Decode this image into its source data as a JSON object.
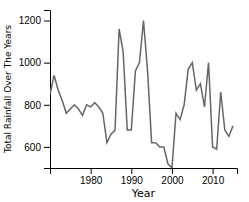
{
  "chart_data": {
    "type": "line",
    "xlabel": "Year",
    "ylabel": "Total Rainfall Over The Years",
    "x": [
      1970,
      1971,
      1972,
      1973,
      1974,
      1975,
      1976,
      1977,
      1978,
      1979,
      1980,
      1981,
      1982,
      1983,
      1984,
      1985,
      1986,
      1987,
      1988,
      1989,
      1990,
      1991,
      1992,
      1993,
      1994,
      1995,
      1996,
      1997,
      1998,
      1999,
      2000,
      2001,
      2002,
      2003,
      2004,
      2005,
      2006,
      2007,
      2008,
      2009,
      2010,
      2011,
      2012,
      2013,
      2014,
      2015
    ],
    "values": [
      850,
      940,
      870,
      820,
      760,
      780,
      800,
      780,
      750,
      800,
      790,
      810,
      790,
      760,
      620,
      660,
      680,
      1160,
      1050,
      680,
      680,
      960,
      1000,
      1200,
      960,
      620,
      620,
      600,
      600,
      520,
      500,
      760,
      730,
      800,
      970,
      1000,
      870,
      900,
      790,
      1000,
      600,
      590,
      860,
      680,
      650,
      700
    ],
    "color": "#666666",
    "xlim": [
      1970,
      2016
    ],
    "ylim": [
      500,
      1250
    ],
    "xticks": [
      1980,
      1990,
      2000,
      2010
    ],
    "yticks": [
      600,
      800,
      1000,
      1200
    ],
    "grid": false
  }
}
